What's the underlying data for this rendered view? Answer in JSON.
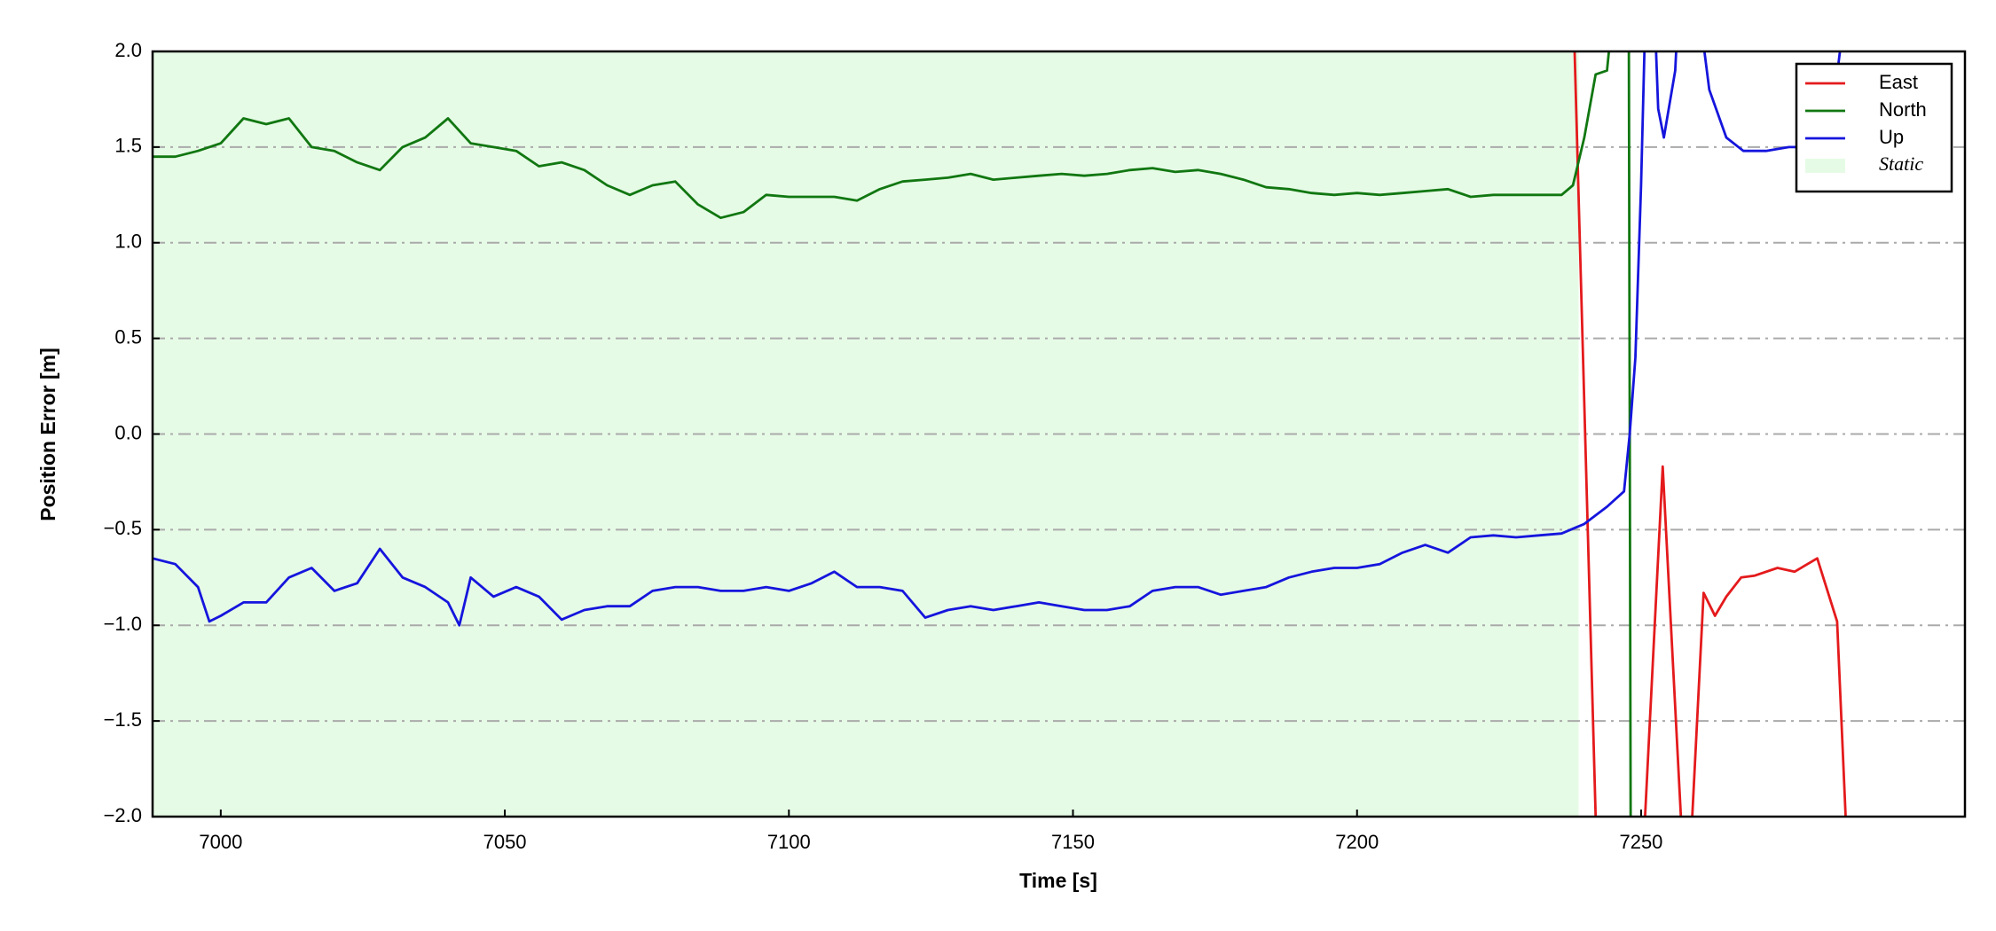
{
  "chart_data": {
    "type": "line",
    "xlabel": "Time [s]",
    "ylabel": "Position Error [m]",
    "xlim": [
      6988,
      7307
    ],
    "ylim": [
      -2.0,
      2.0
    ],
    "xticks": [
      7000,
      7050,
      7100,
      7150,
      7200,
      7250
    ],
    "yticks": [
      {
        "value": -2.0,
        "label": "−2.0"
      },
      {
        "value": -1.5,
        "label": "−1.5"
      },
      {
        "value": -1.0,
        "label": "−1.0"
      },
      {
        "value": -0.5,
        "label": "−0.5"
      },
      {
        "value": 0.0,
        "label": "0.0"
      },
      {
        "value": 0.5,
        "label": "0.5"
      },
      {
        "value": 1.0,
        "label": "1.0"
      },
      {
        "value": 1.5,
        "label": "1.5"
      },
      {
        "value": 2.0,
        "label": "2.0"
      }
    ],
    "grid": true,
    "legend": "upper right",
    "static": {
      "name": "Static",
      "color": "#e6fbe6",
      "xlim": [
        6988,
        7239
      ]
    },
    "series": [
      {
        "name": "East",
        "color": "#e41a1c",
        "x": [
          7237,
          7238.3,
          7242,
          7243,
          7248,
          7250.7,
          7253.8,
          7257,
          7258,
          7259,
          7261,
          7263,
          7265,
          7267.6,
          7270,
          7274,
          7277,
          7281,
          7284.5,
          7286,
          7287
        ],
        "values": [
          2.5,
          2.0,
          -2.0,
          -2.5,
          -2.5,
          -2.0,
          -0.17,
          -2.0,
          -2.5,
          -2.0,
          -0.83,
          -0.95,
          -0.85,
          -0.75,
          -0.74,
          -0.7,
          -0.72,
          -0.65,
          -0.98,
          -2.0,
          -2.5
        ]
      },
      {
        "name": "North",
        "color": "#117711",
        "x": [
          6988,
          6992,
          6996,
          7000,
          7004,
          7008,
          7012,
          7016,
          7020,
          7024,
          7028,
          7032,
          7036,
          7040,
          7044,
          7048,
          7052,
          7056,
          7060,
          7064,
          7068,
          7072,
          7076,
          7080,
          7084,
          7088,
          7092,
          7096,
          7100,
          7104,
          7108,
          7112,
          7116,
          7120,
          7124,
          7128,
          7132,
          7136,
          7140,
          7144,
          7148,
          7152,
          7156,
          7160,
          7164,
          7168,
          7172,
          7176,
          7180,
          7184,
          7188,
          7192,
          7196,
          7200,
          7204,
          7208,
          7212,
          7216,
          7220,
          7224,
          7228,
          7232,
          7236,
          7238,
          7240,
          7242,
          7244,
          7246,
          7247.8,
          7248.2
        ],
        "values": [
          1.45,
          1.45,
          1.48,
          1.52,
          1.65,
          1.62,
          1.65,
          1.5,
          1.48,
          1.42,
          1.38,
          1.5,
          1.55,
          1.65,
          1.52,
          1.5,
          1.48,
          1.4,
          1.42,
          1.38,
          1.3,
          1.25,
          1.3,
          1.32,
          1.2,
          1.13,
          1.16,
          1.25,
          1.24,
          1.24,
          1.24,
          1.22,
          1.28,
          1.32,
          1.33,
          1.34,
          1.36,
          1.33,
          1.34,
          1.35,
          1.36,
          1.35,
          1.36,
          1.38,
          1.39,
          1.37,
          1.38,
          1.36,
          1.33,
          1.29,
          1.28,
          1.26,
          1.25,
          1.26,
          1.25,
          1.26,
          1.27,
          1.28,
          1.24,
          1.25,
          1.25,
          1.25,
          1.25,
          1.3,
          1.55,
          1.88,
          1.9,
          2.5,
          2.5,
          -2.5
        ]
      },
      {
        "name": "Up",
        "color": "#1515dd",
        "x": [
          6988,
          6992,
          6996,
          6998,
          7000,
          7004,
          7008,
          7012,
          7016,
          7020,
          7024,
          7028,
          7032,
          7036,
          7040,
          7042,
          7044,
          7048,
          7052,
          7056,
          7060,
          7064,
          7068,
          7072,
          7076,
          7080,
          7084,
          7088,
          7092,
          7096,
          7100,
          7104,
          7108,
          7112,
          7116,
          7120,
          7124,
          7128,
          7132,
          7136,
          7140,
          7144,
          7148,
          7152,
          7156,
          7160,
          7164,
          7168,
          7172,
          7176,
          7180,
          7184,
          7188,
          7192,
          7196,
          7200,
          7204,
          7208,
          7212,
          7216,
          7220,
          7224,
          7228,
          7232,
          7236,
          7240,
          7244,
          7247,
          7248,
          7249,
          7250,
          7251,
          7252,
          7253,
          7254,
          7256,
          7257,
          7259,
          7262,
          7265,
          7268,
          7272,
          7276,
          7280,
          7283,
          7285,
          7286
        ],
        "values": [
          -0.65,
          -0.68,
          -0.8,
          -0.98,
          -0.95,
          -0.88,
          -0.88,
          -0.75,
          -0.7,
          -0.82,
          -0.78,
          -0.6,
          -0.75,
          -0.8,
          -0.88,
          -1.0,
          -0.75,
          -0.85,
          -0.8,
          -0.85,
          -0.97,
          -0.92,
          -0.9,
          -0.9,
          -0.82,
          -0.8,
          -0.8,
          -0.82,
          -0.82,
          -0.8,
          -0.82,
          -0.78,
          -0.72,
          -0.8,
          -0.8,
          -0.82,
          -0.96,
          -0.92,
          -0.9,
          -0.92,
          -0.9,
          -0.88,
          -0.9,
          -0.92,
          -0.92,
          -0.9,
          -0.82,
          -0.8,
          -0.8,
          -0.84,
          -0.82,
          -0.8,
          -0.75,
          -0.72,
          -0.7,
          -0.7,
          -0.68,
          -0.62,
          -0.58,
          -0.62,
          -0.54,
          -0.53,
          -0.54,
          -0.53,
          -0.52,
          -0.47,
          -0.38,
          -0.3,
          0.0,
          0.4,
          1.3,
          2.5,
          2.5,
          1.7,
          1.55,
          1.9,
          2.5,
          2.5,
          1.8,
          1.55,
          1.48,
          1.48,
          1.5,
          1.5,
          1.52,
          2.0,
          2.5
        ]
      }
    ]
  }
}
